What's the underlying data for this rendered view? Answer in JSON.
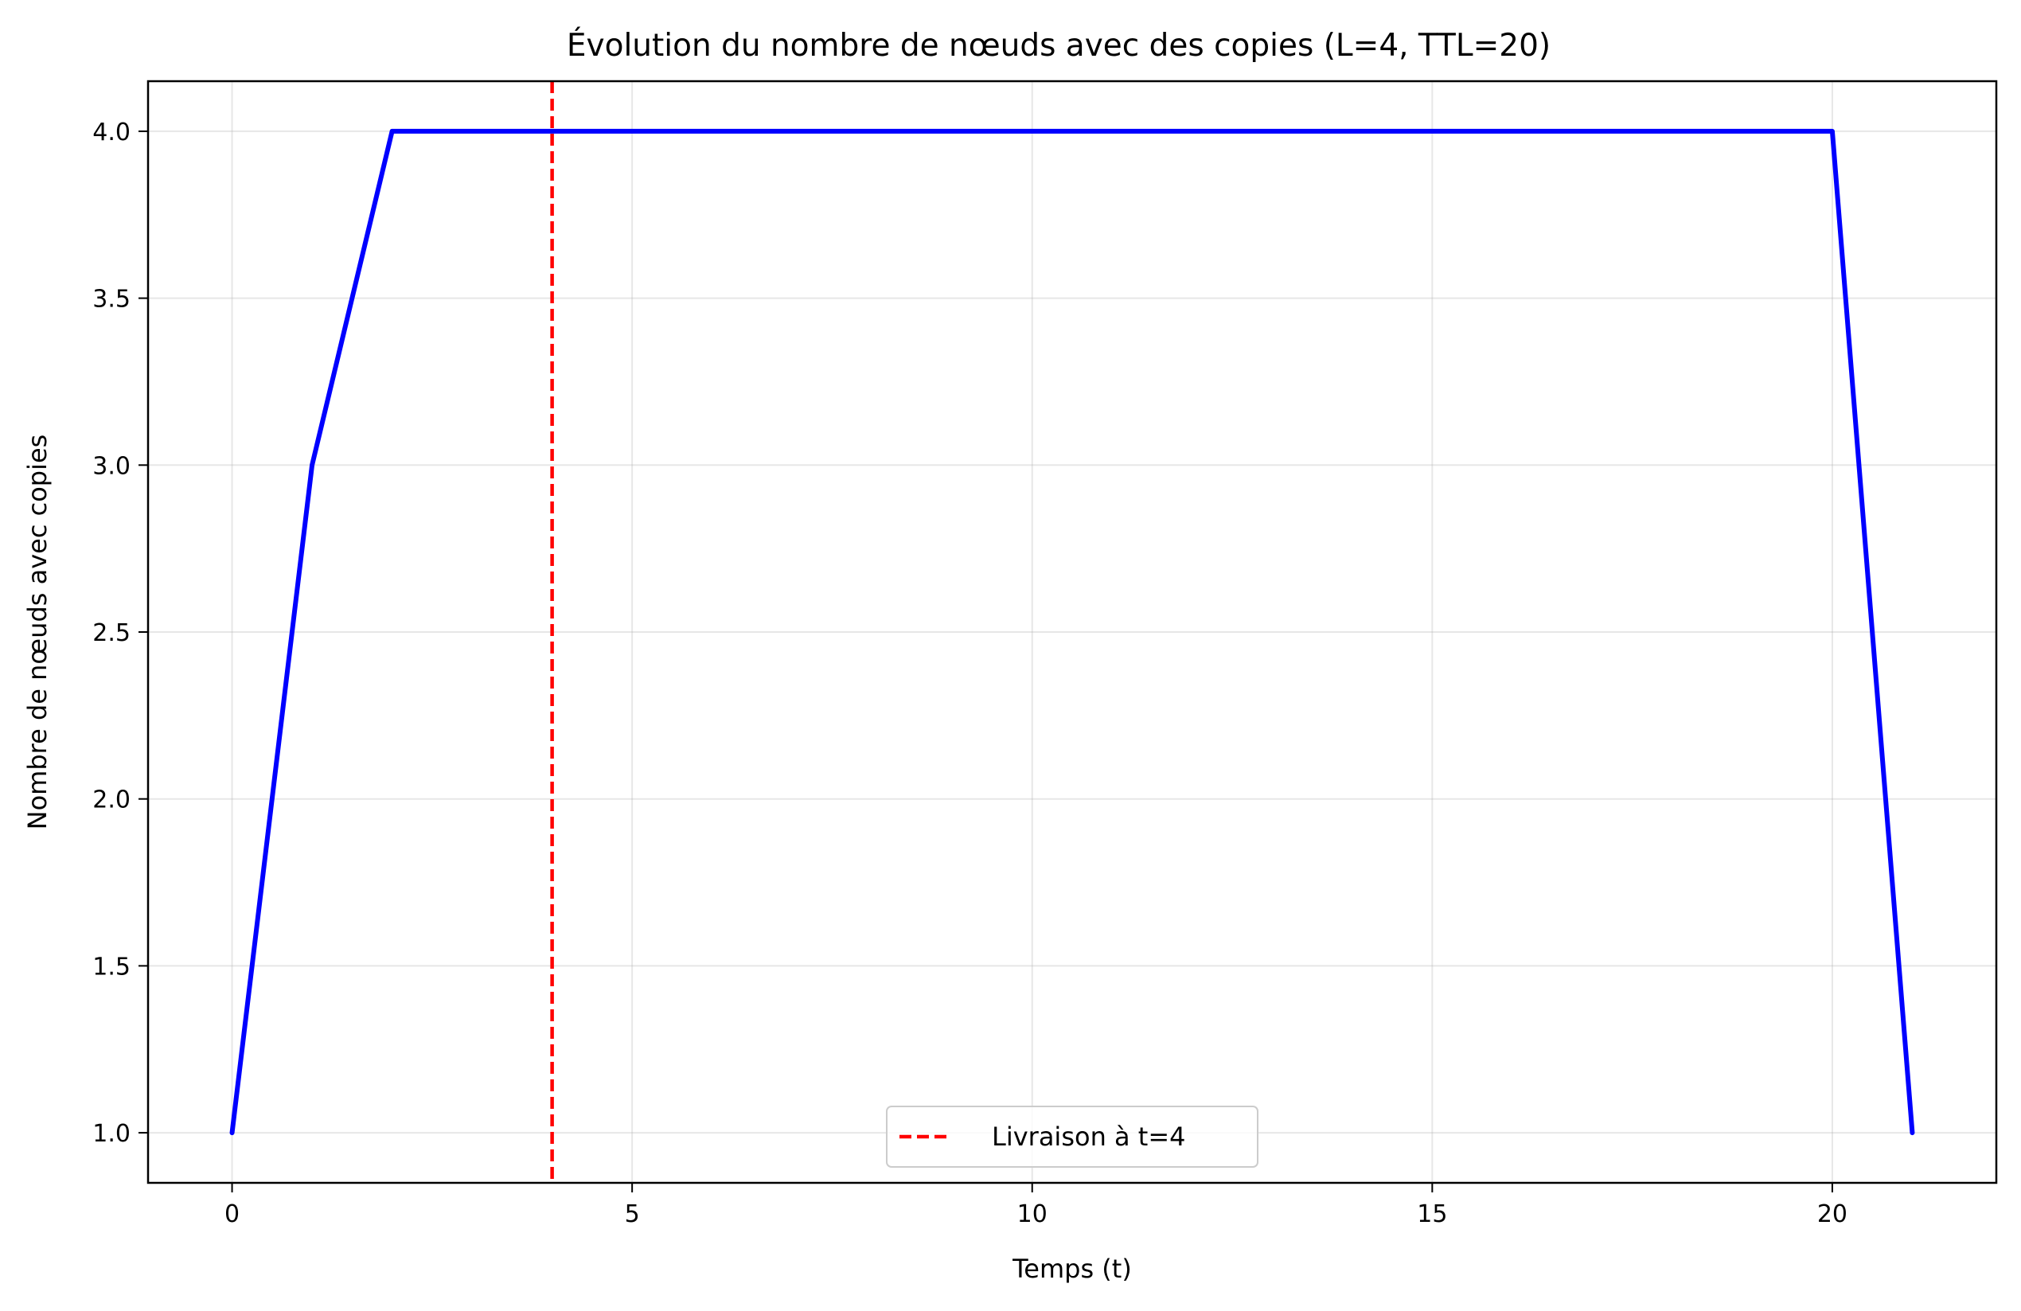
{
  "chart_data": {
    "type": "line",
    "title": "Évolution du nombre de nœuds avec des copies (L=4, TTL=20)",
    "xlabel": "Temps (t)",
    "ylabel": "Nombre de nœuds avec copies",
    "xlim": [
      -1.05,
      22.05
    ],
    "ylim": [
      0.85,
      4.15
    ],
    "xticks": [
      0,
      5,
      10,
      15,
      20
    ],
    "xtick_labels": [
      "0",
      "5",
      "10",
      "15",
      "20"
    ],
    "yticks": [
      1.0,
      1.5,
      2.0,
      2.5,
      3.0,
      3.5,
      4.0
    ],
    "ytick_labels": [
      "1.0",
      "1.5",
      "2.0",
      "2.5",
      "3.0",
      "3.5",
      "4.0"
    ],
    "grid": true,
    "legend_position": "bottom-center",
    "series": [
      {
        "color": "#0000ff",
        "x": [
          0,
          1,
          2,
          3,
          4,
          5,
          6,
          7,
          8,
          9,
          10,
          11,
          12,
          13,
          14,
          15,
          16,
          17,
          18,
          19,
          20,
          21
        ],
        "y": [
          1,
          3,
          4,
          4,
          4,
          4,
          4,
          4,
          4,
          4,
          4,
          4,
          4,
          4,
          4,
          4,
          4,
          4,
          4,
          4,
          4,
          1
        ]
      }
    ],
    "annotations": [
      {
        "type": "vline",
        "x": 4,
        "color": "#ff0000",
        "style": "dashed",
        "label": "Livraison à t=4"
      }
    ]
  }
}
